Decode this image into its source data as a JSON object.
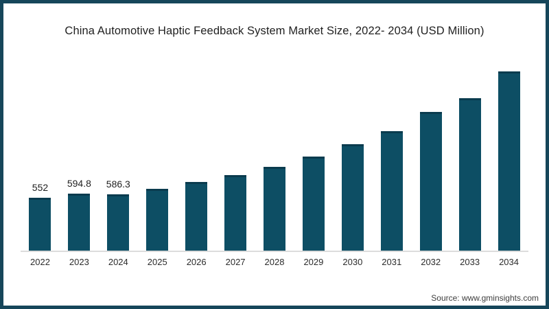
{
  "chart_data": {
    "type": "bar",
    "title": "China Automotive Haptic Feedback System Market Size, 2022- 2034 (USD Million)",
    "xlabel": "",
    "ylabel": "",
    "categories": [
      "2022",
      "2023",
      "2024",
      "2025",
      "2026",
      "2027",
      "2028",
      "2029",
      "2030",
      "2031",
      "2032",
      "2033",
      "2034"
    ],
    "values": [
      552,
      594.8,
      586.3,
      647,
      715,
      786,
      876,
      980,
      1108,
      1251,
      1451,
      1595,
      1873
    ],
    "data_labels": [
      "552",
      "594.8",
      "586.3",
      "",
      "",
      "",
      "",
      "",
      "",
      "",
      "",
      "",
      ""
    ],
    "ylim": [
      0,
      1900
    ],
    "grid": false,
    "legend": false,
    "bar_color": "#0d4e64",
    "bar_top_edge_color": "#0a3b4e",
    "axis_line_color": "#dcdcdc"
  },
  "footer": {
    "source": "Source: www.gminsights.com"
  },
  "colors": {
    "frame_border": "#16465a",
    "title_text": "#1f1f1f",
    "tick_text": "#2b2b2b",
    "source_text": "#3d3d3d",
    "background": "#ffffff"
  }
}
